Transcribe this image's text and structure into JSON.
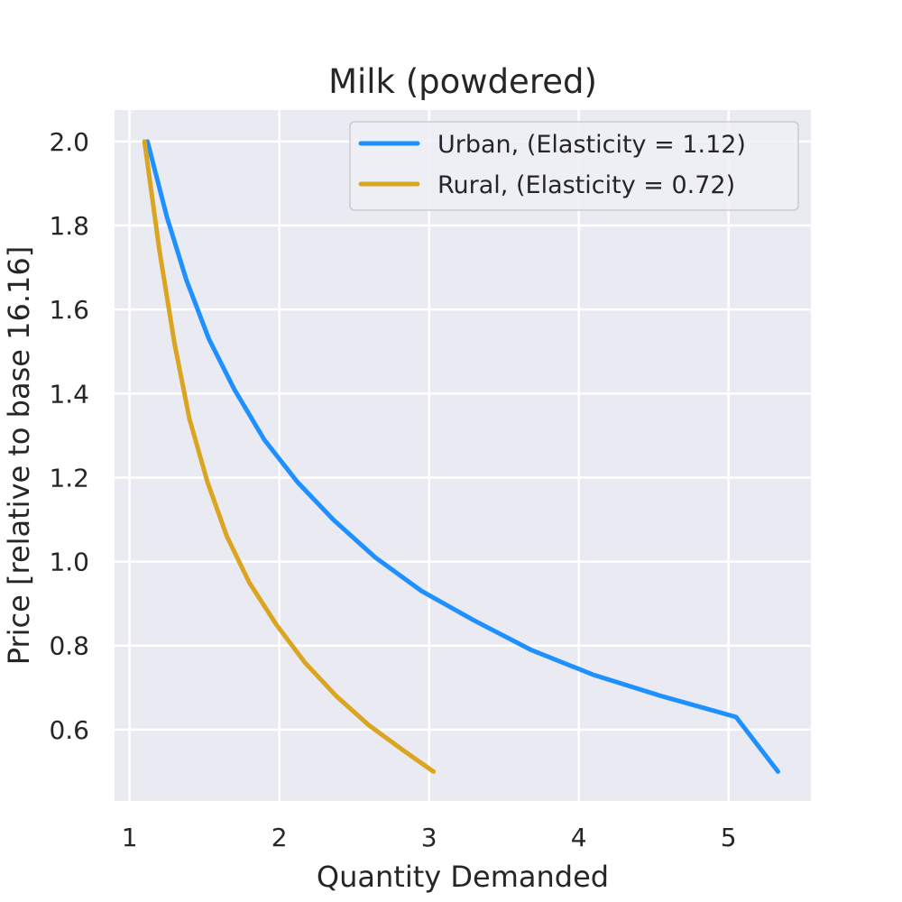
{
  "chart_data": {
    "type": "line",
    "title": "Milk (powdered)",
    "xlabel": "Quantity Demanded",
    "ylabel": "Price [relative to base 16.16]",
    "xlim": [
      0.9,
      5.55
    ],
    "ylim": [
      0.43,
      2.075
    ],
    "xticks": [
      1,
      2,
      3,
      4,
      5
    ],
    "yticks": [
      0.6,
      0.8,
      1.0,
      1.2,
      1.4,
      1.6,
      1.8,
      2.0
    ],
    "xtick_labels": [
      "1",
      "2",
      "3",
      "4",
      "5"
    ],
    "ytick_labels": [
      "0.6",
      "0.8",
      "1.0",
      "1.2",
      "1.4",
      "1.6",
      "1.8",
      "2.0"
    ],
    "grid": true,
    "legend_position": "top-right",
    "background_color": "#eaeaf2",
    "series": [
      {
        "name": "Urban, (Elasticity = 1.12)",
        "color": "#1e90ff",
        "x": [
          1.12,
          1.25,
          1.38,
          1.53,
          1.7,
          1.9,
          2.12,
          2.36,
          2.64,
          2.95,
          3.3,
          3.68,
          4.1,
          4.55,
          5.05,
          5.33
        ],
        "y": [
          2.0,
          1.82,
          1.67,
          1.53,
          1.41,
          1.29,
          1.19,
          1.1,
          1.01,
          0.93,
          0.86,
          0.79,
          0.73,
          0.68,
          0.63,
          0.5
        ]
      },
      {
        "name": "Rural, (Elasticity = 0.72)",
        "color": "#daa520",
        "x": [
          1.1,
          1.2,
          1.3,
          1.4,
          1.52,
          1.65,
          1.8,
          1.98,
          2.17,
          2.38,
          2.6,
          2.83,
          3.03
        ],
        "y": [
          2.0,
          1.74,
          1.52,
          1.34,
          1.19,
          1.06,
          0.95,
          0.85,
          0.76,
          0.68,
          0.61,
          0.55,
          0.5
        ]
      }
    ]
  }
}
